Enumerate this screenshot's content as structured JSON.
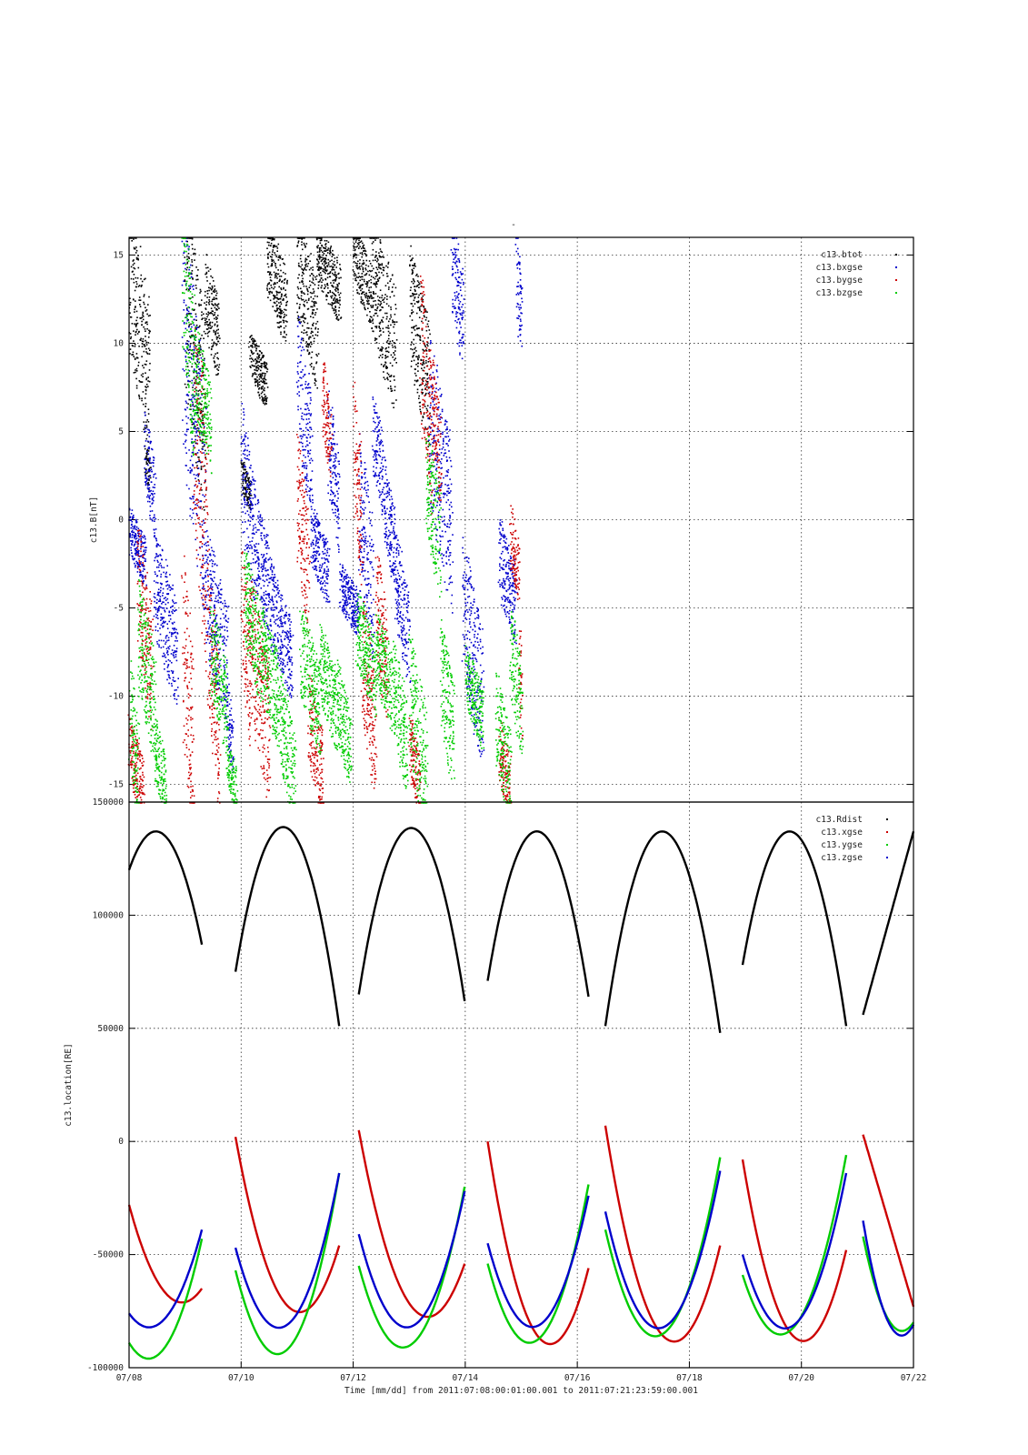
{
  "chart_data": [
    {
      "type": "scatter",
      "title": "-",
      "ylabel": "c13.B[nT]",
      "ylim": [
        -16,
        16
      ],
      "yticks": [
        "15",
        "10",
        "5",
        "0",
        "-5",
        "-10",
        "-15"
      ],
      "legend_position": "top-right",
      "series": [
        {
          "name": "c13.btot",
          "color": "#000000",
          "segments": [
            [
              0.0,
              0.35,
              16,
              6
            ],
            [
              0.29,
              0.36,
              4,
              2
            ],
            [
              1.0,
              1.35,
              16,
              3
            ],
            [
              1.35,
              1.6,
              14,
              9
            ],
            [
              2.0,
              2.15,
              3,
              1
            ],
            [
              2.15,
              2.45,
              10,
              7
            ],
            [
              2.45,
              2.8,
              16,
              11
            ],
            [
              3.0,
              3.35,
              16,
              9
            ],
            [
              3.35,
              3.75,
              16,
              12
            ],
            [
              4.0,
              4.3,
              16,
              12
            ],
            [
              4.3,
              4.75,
              16,
              8
            ],
            [
              5.0,
              5.35,
              14,
              6
            ]
          ]
        },
        {
          "name": "c13.bxgse",
          "color": "#0000cc",
          "segments": [
            [
              0.0,
              0.28,
              0,
              -3
            ],
            [
              0.28,
              0.45,
              5,
              0
            ],
            [
              0.45,
              0.85,
              -2,
              -9
            ],
            [
              0.95,
              1.35,
              14,
              -2
            ],
            [
              1.35,
              1.75,
              -2,
              -10
            ],
            [
              1.75,
              1.85,
              -10,
              -14
            ],
            [
              2.0,
              2.25,
              5,
              -3
            ],
            [
              2.25,
              2.55,
              0,
              -6
            ],
            [
              2.55,
              2.9,
              -4,
              -9
            ],
            [
              3.0,
              3.25,
              10,
              2
            ],
            [
              3.25,
              3.55,
              0,
              -4
            ],
            [
              3.55,
              3.75,
              6,
              -1
            ],
            [
              3.75,
              4.1,
              -3,
              -6
            ],
            [
              4.1,
              4.35,
              3,
              -6
            ],
            [
              4.35,
              4.55,
              6,
              1
            ],
            [
              4.55,
              4.75,
              2,
              -3
            ],
            [
              4.75,
              5.0,
              -2,
              -8
            ],
            [
              5.35,
              5.75,
              8,
              -3
            ],
            [
              5.75,
              5.95,
              16,
              10
            ],
            [
              5.95,
              6.3,
              -3,
              -12
            ],
            [
              6.6,
              6.9,
              -1,
              -6
            ],
            [
              6.9,
              7.0,
              16,
              10
            ]
          ]
        },
        {
          "name": "c13.bygse",
          "color": "#cc0000",
          "segments": [
            [
              0.0,
              0.25,
              -12,
              -16
            ],
            [
              0.15,
              0.4,
              -2,
              -10
            ],
            [
              0.95,
              1.15,
              -4,
              -16
            ],
            [
              1.15,
              1.4,
              10,
              -6
            ],
            [
              1.4,
              1.6,
              -4,
              -14
            ],
            [
              2.0,
              2.15,
              -3,
              -11
            ],
            [
              2.15,
              2.5,
              -5,
              -14
            ],
            [
              3.0,
              3.2,
              3,
              -5
            ],
            [
              3.2,
              3.45,
              -10,
              -16
            ],
            [
              3.45,
              3.6,
              8,
              3
            ],
            [
              4.0,
              4.15,
              6,
              -2
            ],
            [
              4.15,
              4.4,
              -6,
              -14
            ],
            [
              4.4,
              4.6,
              -3,
              -10
            ],
            [
              5.0,
              5.2,
              -12,
              -16
            ],
            [
              5.2,
              5.4,
              12,
              2
            ],
            [
              5.4,
              5.55,
              8,
              2
            ],
            [
              6.6,
              6.8,
              -12,
              -16
            ],
            [
              6.8,
              6.95,
              0,
              -4
            ],
            [
              6.95,
              7.0,
              -6,
              -12
            ]
          ]
        },
        {
          "name": "c13.bzgse",
          "color": "#00cc00",
          "segments": [
            [
              0.0,
              0.15,
              -9,
              -16
            ],
            [
              0.15,
              0.45,
              -5,
              -12
            ],
            [
              0.45,
              0.65,
              -12,
              -16
            ],
            [
              0.95,
              1.15,
              16,
              6
            ],
            [
              1.15,
              1.45,
              10,
              4
            ],
            [
              1.45,
              1.75,
              -6,
              -12
            ],
            [
              1.75,
              1.9,
              -13,
              -16
            ],
            [
              2.05,
              2.35,
              -3,
              -9
            ],
            [
              2.35,
              2.7,
              -6,
              -12
            ],
            [
              2.7,
              2.95,
              -10,
              -16
            ],
            [
              3.05,
              3.4,
              -6,
              -12
            ],
            [
              3.4,
              3.7,
              -7,
              -12
            ],
            [
              3.7,
              3.95,
              -9,
              -14
            ],
            [
              4.05,
              4.4,
              -5,
              -10
            ],
            [
              4.4,
              4.7,
              -6,
              -11
            ],
            [
              4.7,
              4.95,
              -8,
              -14
            ],
            [
              5.0,
              5.3,
              -8,
              -16
            ],
            [
              5.3,
              5.55,
              4,
              -3
            ],
            [
              5.55,
              5.8,
              -7,
              -14
            ],
            [
              6.0,
              6.3,
              -8,
              -12
            ],
            [
              6.55,
              6.8,
              -10,
              -16
            ],
            [
              6.8,
              7.0,
              -6,
              -12
            ]
          ]
        }
      ]
    },
    {
      "type": "line",
      "ylabel": "c13.location[RE]",
      "xlabel": "Time [mm/dd]  from 2011:07:08:00:01:00.001  to  2011:07:21:23:59:00.001",
      "xticks": [
        "07/08",
        "07/10",
        "07/12",
        "07/14",
        "07/16",
        "07/18",
        "07/20",
        "07/22"
      ],
      "xlim_days": [
        0,
        14
      ],
      "ylim": [
        -100000,
        150000
      ],
      "yticks": [
        "150000",
        "100000",
        "50000",
        "0",
        "-50000",
        "-100000"
      ],
      "legend_position": "top-right",
      "series": [
        {
          "name": "c13.Rdist",
          "color": "#000000",
          "segments": [
            [
              [
                0.0,
                120000
              ],
              [
                0.5,
                137000
              ],
              [
                1.3,
                87000
              ]
            ],
            [
              [
                1.9,
                75000
              ],
              [
                2.9,
                137000
              ],
              [
                3.75,
                51000
              ]
            ],
            [
              [
                4.1,
                65000
              ],
              [
                4.9,
                137000
              ],
              [
                5.99,
                62000
              ]
            ],
            [
              [
                6.4,
                71000
              ],
              [
                7.25,
                137000
              ],
              [
                8.2,
                64000
              ]
            ],
            [
              [
                8.5,
                51000
              ],
              [
                9.5,
                137000
              ],
              [
                10.55,
                48000
              ]
            ],
            [
              [
                10.95,
                78000
              ],
              [
                11.8,
                137000
              ],
              [
                12.8,
                51000
              ]
            ],
            [
              [
                13.1,
                56000
              ],
              [
                14.0,
                137000
              ]
            ]
          ]
        },
        {
          "name": "c13.xgse",
          "color": "#cc0000",
          "segments": [
            [
              [
                0.0,
                -28000
              ],
              [
                1.0,
                -71000
              ],
              [
                1.3,
                -65000
              ]
            ],
            [
              [
                1.9,
                2000
              ],
              [
                3.2,
                -74000
              ],
              [
                3.75,
                -46000
              ]
            ],
            [
              [
                4.1,
                5000
              ],
              [
                5.5,
                -76000
              ],
              [
                5.99,
                -54000
              ]
            ],
            [
              [
                6.4,
                0
              ],
              [
                7.9,
                -79000
              ],
              [
                8.2,
                -56000
              ]
            ],
            [
              [
                8.5,
                7000
              ],
              [
                10.05,
                -82000
              ],
              [
                10.55,
                -46000
              ]
            ],
            [
              [
                10.95,
                -8000
              ],
              [
                12.25,
                -85000
              ],
              [
                12.8,
                -48000
              ]
            ],
            [
              [
                13.1,
                3000
              ],
              [
                14.0,
                -73000
              ]
            ]
          ]
        },
        {
          "name": "c13.ygse",
          "color": "#00cc00",
          "segments": [
            [
              [
                0.0,
                -89000
              ],
              [
                0.35,
                -96000
              ],
              [
                1.3,
                -43000
              ]
            ],
            [
              [
                1.9,
                -57000
              ],
              [
                2.65,
                -94000
              ],
              [
                3.75,
                -14000
              ]
            ],
            [
              [
                4.1,
                -55000
              ],
              [
                4.85,
                -91000
              ],
              [
                5.99,
                -20000
              ]
            ],
            [
              [
                6.4,
                -54000
              ],
              [
                7.15,
                -89000
              ],
              [
                8.2,
                -19000
              ]
            ],
            [
              [
                8.5,
                -39000
              ],
              [
                9.35,
                -86000
              ],
              [
                10.55,
                -7000
              ]
            ],
            [
              [
                10.95,
                -59000
              ],
              [
                11.7,
                -85000
              ],
              [
                12.8,
                -6000
              ]
            ],
            [
              [
                13.1,
                -42000
              ],
              [
                13.65,
                -82000
              ],
              [
                14.0,
                -80000
              ]
            ]
          ]
        },
        {
          "name": "c13.zgse",
          "color": "#0000cc",
          "segments": [
            [
              [
                0.0,
                -76000
              ],
              [
                0.3,
                -82000
              ],
              [
                1.3,
                -39000
              ]
            ],
            [
              [
                1.9,
                -47000
              ],
              [
                2.75,
                -82000
              ],
              [
                3.75,
                -14000
              ]
            ],
            [
              [
                4.1,
                -41000
              ],
              [
                4.9,
                -82000
              ],
              [
                5.99,
                -22000
              ]
            ],
            [
              [
                6.4,
                -45000
              ],
              [
                7.2,
                -82000
              ],
              [
                8.2,
                -24000
              ]
            ],
            [
              [
                8.5,
                -31000
              ],
              [
                9.35,
                -82000
              ],
              [
                10.55,
                -13000
              ]
            ],
            [
              [
                10.95,
                -50000
              ],
              [
                11.6,
                -82000
              ],
              [
                12.8,
                -14000
              ]
            ],
            [
              [
                13.1,
                -35000
              ],
              [
                13.6,
                -82000
              ],
              [
                14.0,
                -81000
              ]
            ]
          ]
        }
      ]
    }
  ]
}
